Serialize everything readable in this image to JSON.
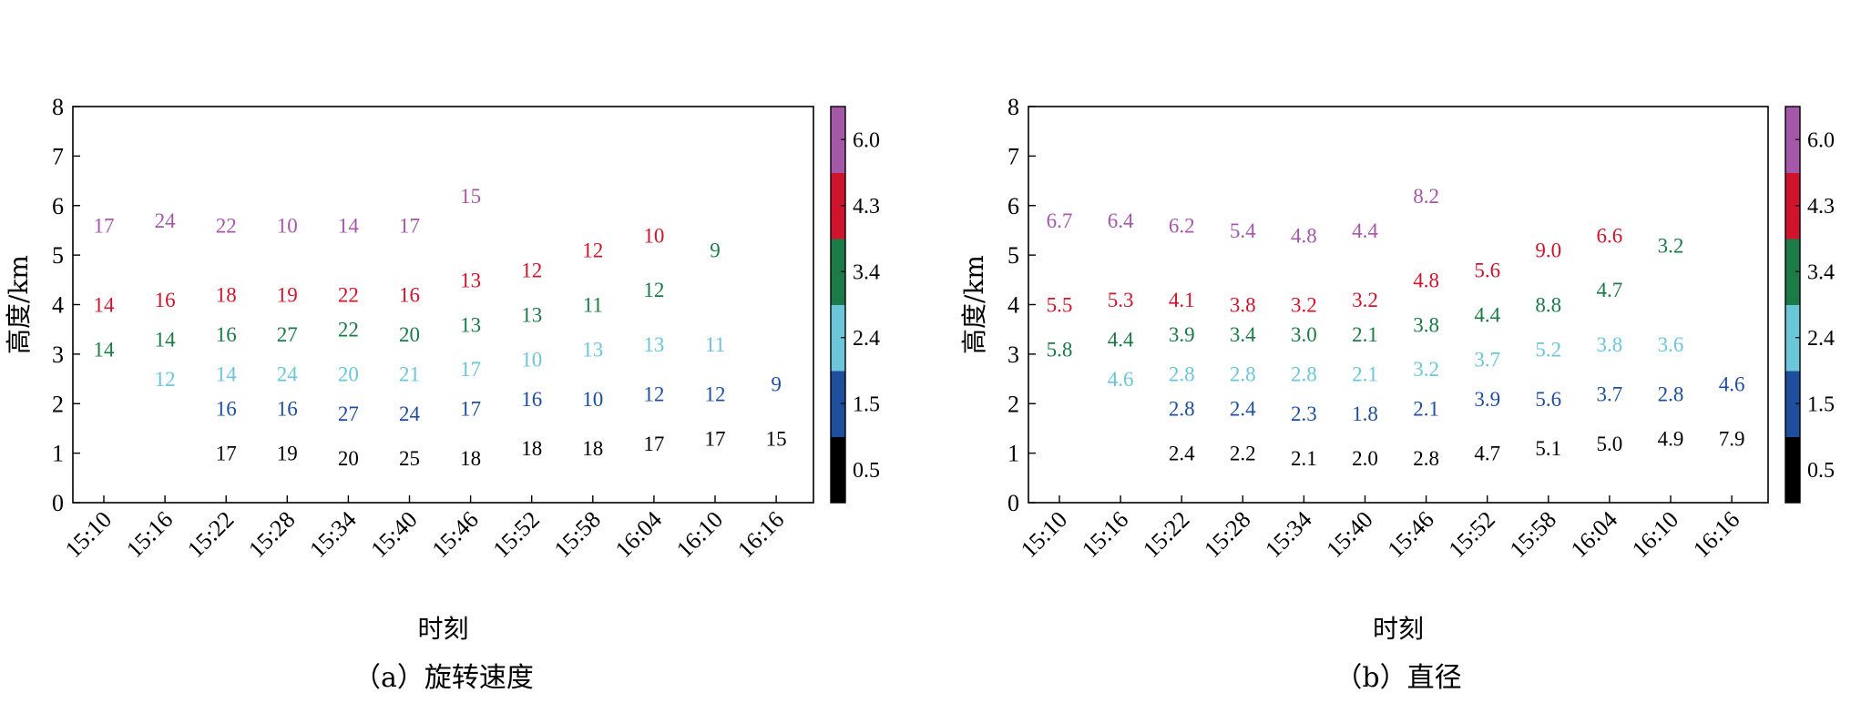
{
  "figure": {
    "colorbar_ticks": [
      "0.5",
      "1.5",
      "2.4",
      "3.4",
      "4.3",
      "6.0"
    ],
    "colorbar_colors": [
      "#000000",
      "#1f4e9c",
      "#6cc6d9",
      "#1b7a46",
      "#d0142c",
      "#a558a8"
    ],
    "level_heights_km": [
      1,
      2,
      3,
      4,
      5,
      6
    ]
  },
  "chart_data": [
    {
      "type": "scatter",
      "caption": "（a）旋转速度",
      "xlabel": "时刻",
      "ylabel": "高度/km",
      "ylim": [
        0,
        8
      ],
      "yticks": [
        "0",
        "1",
        "2",
        "3",
        "4",
        "5",
        "6",
        "7",
        "8"
      ],
      "categories": [
        "15:10",
        "15:16",
        "15:22",
        "15:28",
        "15:34",
        "15:40",
        "15:46",
        "15:52",
        "15:58",
        "16:04",
        "16:10",
        "16:16"
      ],
      "points": [
        {
          "x": "15:10",
          "y": 5.6,
          "level": 5,
          "label": "17"
        },
        {
          "x": "15:10",
          "y": 4.0,
          "level": 4,
          "label": "14"
        },
        {
          "x": "15:10",
          "y": 3.1,
          "level": 3,
          "label": "14"
        },
        {
          "x": "15:16",
          "y": 5.7,
          "level": 5,
          "label": "24"
        },
        {
          "x": "15:16",
          "y": 4.1,
          "level": 4,
          "label": "16"
        },
        {
          "x": "15:16",
          "y": 3.3,
          "level": 3,
          "label": "14"
        },
        {
          "x": "15:16",
          "y": 2.5,
          "level": 2,
          "label": "12"
        },
        {
          "x": "15:22",
          "y": 5.6,
          "level": 5,
          "label": "22"
        },
        {
          "x": "15:22",
          "y": 4.2,
          "level": 4,
          "label": "18"
        },
        {
          "x": "15:22",
          "y": 3.4,
          "level": 3,
          "label": "16"
        },
        {
          "x": "15:22",
          "y": 2.6,
          "level": 2,
          "label": "14"
        },
        {
          "x": "15:22",
          "y": 1.9,
          "level": 1,
          "label": "16"
        },
        {
          "x": "15:22",
          "y": 1.0,
          "level": 0,
          "label": "17"
        },
        {
          "x": "15:28",
          "y": 5.6,
          "level": 5,
          "label": "10"
        },
        {
          "x": "15:28",
          "y": 4.2,
          "level": 4,
          "label": "19"
        },
        {
          "x": "15:28",
          "y": 3.4,
          "level": 3,
          "label": "27"
        },
        {
          "x": "15:28",
          "y": 2.6,
          "level": 2,
          "label": "24"
        },
        {
          "x": "15:28",
          "y": 1.9,
          "level": 1,
          "label": "16"
        },
        {
          "x": "15:28",
          "y": 1.0,
          "level": 0,
          "label": "19"
        },
        {
          "x": "15:34",
          "y": 5.6,
          "level": 5,
          "label": "14"
        },
        {
          "x": "15:34",
          "y": 4.2,
          "level": 4,
          "label": "22"
        },
        {
          "x": "15:34",
          "y": 3.5,
          "level": 3,
          "label": "22"
        },
        {
          "x": "15:34",
          "y": 2.6,
          "level": 2,
          "label": "20"
        },
        {
          "x": "15:34",
          "y": 1.8,
          "level": 1,
          "label": "27"
        },
        {
          "x": "15:34",
          "y": 0.9,
          "level": 0,
          "label": "20"
        },
        {
          "x": "15:40",
          "y": 5.6,
          "level": 5,
          "label": "17"
        },
        {
          "x": "15:40",
          "y": 4.2,
          "level": 4,
          "label": "16"
        },
        {
          "x": "15:40",
          "y": 3.4,
          "level": 3,
          "label": "20"
        },
        {
          "x": "15:40",
          "y": 2.6,
          "level": 2,
          "label": "21"
        },
        {
          "x": "15:40",
          "y": 1.8,
          "level": 1,
          "label": "24"
        },
        {
          "x": "15:40",
          "y": 0.9,
          "level": 0,
          "label": "25"
        },
        {
          "x": "15:46",
          "y": 6.2,
          "level": 5,
          "label": "15"
        },
        {
          "x": "15:46",
          "y": 4.5,
          "level": 4,
          "label": "13"
        },
        {
          "x": "15:46",
          "y": 3.6,
          "level": 3,
          "label": "13"
        },
        {
          "x": "15:46",
          "y": 2.7,
          "level": 2,
          "label": "17"
        },
        {
          "x": "15:46",
          "y": 1.9,
          "level": 1,
          "label": "17"
        },
        {
          "x": "15:46",
          "y": 0.9,
          "level": 0,
          "label": "18"
        },
        {
          "x": "15:52",
          "y": 4.7,
          "level": 4,
          "label": "12"
        },
        {
          "x": "15:52",
          "y": 3.8,
          "level": 3,
          "label": "13"
        },
        {
          "x": "15:52",
          "y": 2.9,
          "level": 2,
          "label": "10"
        },
        {
          "x": "15:52",
          "y": 2.1,
          "level": 1,
          "label": "16"
        },
        {
          "x": "15:52",
          "y": 1.1,
          "level": 0,
          "label": "18"
        },
        {
          "x": "15:58",
          "y": 5.1,
          "level": 4,
          "label": "12"
        },
        {
          "x": "15:58",
          "y": 4.0,
          "level": 3,
          "label": "11"
        },
        {
          "x": "15:58",
          "y": 3.1,
          "level": 2,
          "label": "13"
        },
        {
          "x": "15:58",
          "y": 2.1,
          "level": 1,
          "label": "10"
        },
        {
          "x": "15:58",
          "y": 1.1,
          "level": 0,
          "label": "18"
        },
        {
          "x": "16:04",
          "y": 5.4,
          "level": 4,
          "label": "10"
        },
        {
          "x": "16:04",
          "y": 4.3,
          "level": 3,
          "label": "12"
        },
        {
          "x": "16:04",
          "y": 3.2,
          "level": 2,
          "label": "13"
        },
        {
          "x": "16:04",
          "y": 2.2,
          "level": 1,
          "label": "12"
        },
        {
          "x": "16:04",
          "y": 1.2,
          "level": 0,
          "label": "17"
        },
        {
          "x": "16:10",
          "y": 5.1,
          "level": 3,
          "label": "9"
        },
        {
          "x": "16:10",
          "y": 3.2,
          "level": 2,
          "label": "11"
        },
        {
          "x": "16:10",
          "y": 2.2,
          "level": 1,
          "label": "12"
        },
        {
          "x": "16:10",
          "y": 1.3,
          "level": 0,
          "label": "17"
        },
        {
          "x": "16:16",
          "y": 2.4,
          "level": 1,
          "label": "9"
        },
        {
          "x": "16:16",
          "y": 1.3,
          "level": 0,
          "label": "15"
        }
      ]
    },
    {
      "type": "scatter",
      "caption": "（b）直径",
      "xlabel": "时刻",
      "ylabel": "高度/km",
      "ylim": [
        0,
        8
      ],
      "yticks": [
        "0",
        "1",
        "2",
        "3",
        "4",
        "5",
        "6",
        "7",
        "8"
      ],
      "categories": [
        "15:10",
        "15:16",
        "15:22",
        "15:28",
        "15:34",
        "15:40",
        "15:46",
        "15:52",
        "15:58",
        "16:04",
        "16:10",
        "16:16"
      ],
      "points": [
        {
          "x": "15:10",
          "y": 5.7,
          "level": 5,
          "label": "6.7"
        },
        {
          "x": "15:10",
          "y": 4.0,
          "level": 4,
          "label": "5.5"
        },
        {
          "x": "15:10",
          "y": 3.1,
          "level": 3,
          "label": "5.8"
        },
        {
          "x": "15:16",
          "y": 5.7,
          "level": 5,
          "label": "6.4"
        },
        {
          "x": "15:16",
          "y": 4.1,
          "level": 4,
          "label": "5.3"
        },
        {
          "x": "15:16",
          "y": 3.3,
          "level": 3,
          "label": "4.4"
        },
        {
          "x": "15:16",
          "y": 2.5,
          "level": 2,
          "label": "4.6"
        },
        {
          "x": "15:22",
          "y": 5.6,
          "level": 5,
          "label": "6.2"
        },
        {
          "x": "15:22",
          "y": 4.1,
          "level": 4,
          "label": "4.1"
        },
        {
          "x": "15:22",
          "y": 3.4,
          "level": 3,
          "label": "3.9"
        },
        {
          "x": "15:22",
          "y": 2.6,
          "level": 2,
          "label": "2.8"
        },
        {
          "x": "15:22",
          "y": 1.9,
          "level": 1,
          "label": "2.8"
        },
        {
          "x": "15:22",
          "y": 1.0,
          "level": 0,
          "label": "2.4"
        },
        {
          "x": "15:28",
          "y": 5.5,
          "level": 5,
          "label": "5.4"
        },
        {
          "x": "15:28",
          "y": 4.0,
          "level": 4,
          "label": "3.8"
        },
        {
          "x": "15:28",
          "y": 3.4,
          "level": 3,
          "label": "3.4"
        },
        {
          "x": "15:28",
          "y": 2.6,
          "level": 2,
          "label": "2.8"
        },
        {
          "x": "15:28",
          "y": 1.9,
          "level": 1,
          "label": "2.4"
        },
        {
          "x": "15:28",
          "y": 1.0,
          "level": 0,
          "label": "2.2"
        },
        {
          "x": "15:34",
          "y": 5.4,
          "level": 5,
          "label": "4.8"
        },
        {
          "x": "15:34",
          "y": 4.0,
          "level": 4,
          "label": "3.2"
        },
        {
          "x": "15:34",
          "y": 3.4,
          "level": 3,
          "label": "3.0"
        },
        {
          "x": "15:34",
          "y": 2.6,
          "level": 2,
          "label": "2.8"
        },
        {
          "x": "15:34",
          "y": 1.8,
          "level": 1,
          "label": "2.3"
        },
        {
          "x": "15:34",
          "y": 0.9,
          "level": 0,
          "label": "2.1"
        },
        {
          "x": "15:40",
          "y": 5.5,
          "level": 5,
          "label": "4.4"
        },
        {
          "x": "15:40",
          "y": 4.1,
          "level": 4,
          "label": "3.2"
        },
        {
          "x": "15:40",
          "y": 3.4,
          "level": 3,
          "label": "2.1"
        },
        {
          "x": "15:40",
          "y": 2.6,
          "level": 2,
          "label": "2.1"
        },
        {
          "x": "15:40",
          "y": 1.8,
          "level": 1,
          "label": "1.8"
        },
        {
          "x": "15:40",
          "y": 0.9,
          "level": 0,
          "label": "2.0"
        },
        {
          "x": "15:46",
          "y": 6.2,
          "level": 5,
          "label": "8.2"
        },
        {
          "x": "15:46",
          "y": 4.5,
          "level": 4,
          "label": "4.8"
        },
        {
          "x": "15:46",
          "y": 3.6,
          "level": 3,
          "label": "3.8"
        },
        {
          "x": "15:46",
          "y": 2.7,
          "level": 2,
          "label": "3.2"
        },
        {
          "x": "15:46",
          "y": 1.9,
          "level": 1,
          "label": "2.1"
        },
        {
          "x": "15:46",
          "y": 0.9,
          "level": 0,
          "label": "2.8"
        },
        {
          "x": "15:52",
          "y": 4.7,
          "level": 4,
          "label": "5.6"
        },
        {
          "x": "15:52",
          "y": 3.8,
          "level": 3,
          "label": "4.4"
        },
        {
          "x": "15:52",
          "y": 2.9,
          "level": 2,
          "label": "3.7"
        },
        {
          "x": "15:52",
          "y": 2.1,
          "level": 1,
          "label": "3.9"
        },
        {
          "x": "15:52",
          "y": 1.0,
          "level": 0,
          "label": "4.7"
        },
        {
          "x": "15:58",
          "y": 5.1,
          "level": 4,
          "label": "9.0"
        },
        {
          "x": "15:58",
          "y": 4.0,
          "level": 3,
          "label": "8.8"
        },
        {
          "x": "15:58",
          "y": 3.1,
          "level": 2,
          "label": "5.2"
        },
        {
          "x": "15:58",
          "y": 2.1,
          "level": 1,
          "label": "5.6"
        },
        {
          "x": "15:58",
          "y": 1.1,
          "level": 0,
          "label": "5.1"
        },
        {
          "x": "16:04",
          "y": 5.4,
          "level": 4,
          "label": "6.6"
        },
        {
          "x": "16:04",
          "y": 4.3,
          "level": 3,
          "label": "4.7"
        },
        {
          "x": "16:04",
          "y": 3.2,
          "level": 2,
          "label": "3.8"
        },
        {
          "x": "16:04",
          "y": 2.2,
          "level": 1,
          "label": "3.7"
        },
        {
          "x": "16:04",
          "y": 1.2,
          "level": 0,
          "label": "5.0"
        },
        {
          "x": "16:10",
          "y": 5.2,
          "level": 3,
          "label": "3.2"
        },
        {
          "x": "16:10",
          "y": 3.2,
          "level": 2,
          "label": "3.6"
        },
        {
          "x": "16:10",
          "y": 2.2,
          "level": 1,
          "label": "2.8"
        },
        {
          "x": "16:10",
          "y": 1.3,
          "level": 0,
          "label": "4.9"
        },
        {
          "x": "16:16",
          "y": 2.4,
          "level": 1,
          "label": "4.6"
        },
        {
          "x": "16:16",
          "y": 1.3,
          "level": 0,
          "label": "7.9"
        }
      ]
    }
  ]
}
